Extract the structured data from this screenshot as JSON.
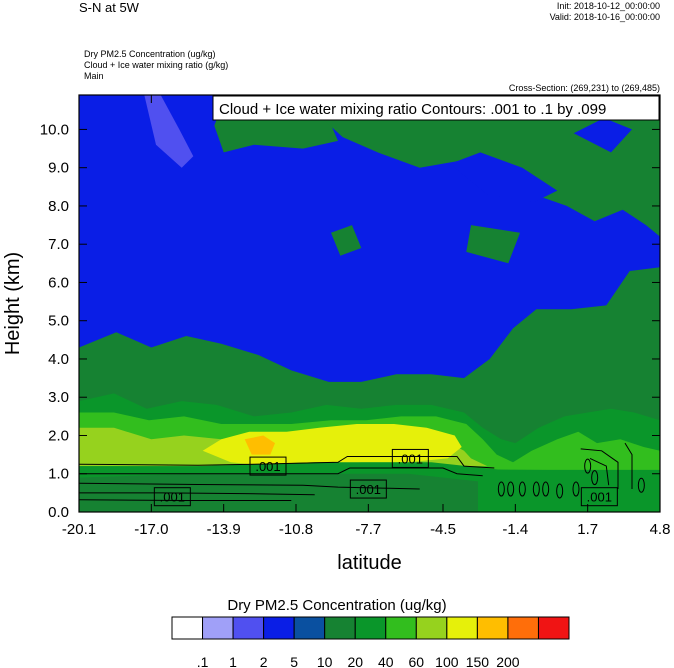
{
  "header": {
    "title": "S-N at 5W",
    "init": "Init: 2018-10-12_00:00:00",
    "valid": "Valid: 2018-10-16_00:00:00",
    "field1": "Dry PM2.5 Concentration   (ug/kg)",
    "field2": "Cloud + Ice water mixing ratio   (g/kg)",
    "field3": "Main",
    "cross_section": "Cross-Section: (269,231) to (269,485)"
  },
  "chart_data": {
    "type": "heatmap",
    "title": "Cloud + Ice water mixing ratio Contours: .001 to .1 by .099",
    "xlabel": "latitude",
    "ylabel": "Height (km)",
    "xlim": [
      -20.1,
      4.8
    ],
    "ylim": [
      0.0,
      10.9
    ],
    "x_ticks": [
      "-20.1",
      "-17.0",
      "-13.9",
      "-10.8",
      "-7.7",
      "-4.5",
      "-1.4",
      "1.7",
      "4.8"
    ],
    "y_ticks": [
      "0.0",
      "1.0",
      "2.0",
      "3.0",
      "4.0",
      "5.0",
      "6.0",
      "7.0",
      "8.0",
      "9.0",
      "10.0"
    ],
    "contour_labels": [
      {
        "text": ".001",
        "lat": -12.0,
        "height": 1.2
      },
      {
        "text": ".001",
        "lat": -5.9,
        "height": 1.4
      },
      {
        "text": ".001",
        "lat": -16.1,
        "height": 0.4
      },
      {
        "text": ".001",
        "lat": -7.7,
        "height": 0.6
      },
      {
        "text": ".001",
        "lat": 2.2,
        "height": 0.4
      }
    ],
    "colorbar": {
      "title": "Dry PM2.5 Concentration  (ug/kg)",
      "labels": [
        ".1",
        "1",
        "2",
        "5",
        "10",
        "20",
        "40",
        "60",
        "100",
        "150",
        "200"
      ],
      "colors": [
        "#ffffff",
        "#a0a0f8",
        "#5050f0",
        "#0a1ee6",
        "#0a50a0",
        "#168232",
        "#0a962a",
        "#32be1e",
        "#96d21e",
        "#e6f00a",
        "#ffbe00",
        "#ff6e0a",
        "#f01414"
      ]
    },
    "colors": {
      "blue": "#0a1ee6",
      "light_blue": "#5050f0",
      "dark_green": "#168232",
      "green": "#0a962a",
      "bright_green": "#32be1e",
      "yellow_green": "#96d21e",
      "yellow": "#e6f00a",
      "orange": "#ffbe00"
    }
  }
}
